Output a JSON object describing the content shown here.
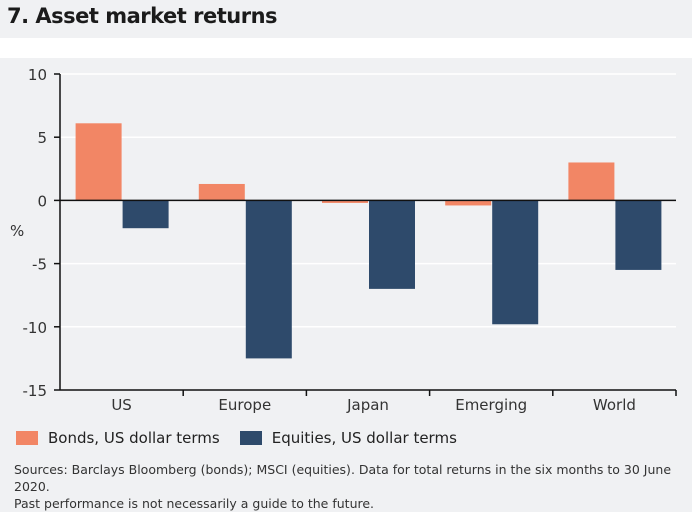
{
  "title": "7. Asset market returns",
  "chart_data": {
    "type": "bar",
    "categories": [
      "US",
      "Europe",
      "Japan",
      "Emerging",
      "World"
    ],
    "series": [
      {
        "name": "Bonds, US dollar terms",
        "color": "#f28665",
        "values": [
          6.1,
          1.3,
          -0.2,
          -0.4,
          3.0
        ]
      },
      {
        "name": "Equities, US dollar terms",
        "color": "#2e4a6b",
        "values": [
          -2.2,
          -12.5,
          -7.0,
          -9.8,
          -5.5
        ]
      }
    ],
    "ylabel": "%",
    "ylim": [
      -15,
      10
    ],
    "yticks": [
      "10",
      "5",
      "0",
      "-5",
      "-10",
      "-15"
    ],
    "grid": true,
    "legend": "bottom"
  },
  "sources": "Sources: Barclays Bloomberg (bonds); MSCI (equities). Data for total returns in the six months to 30 June 2020.",
  "note": "Past performance is not necessarily a guide to the future."
}
